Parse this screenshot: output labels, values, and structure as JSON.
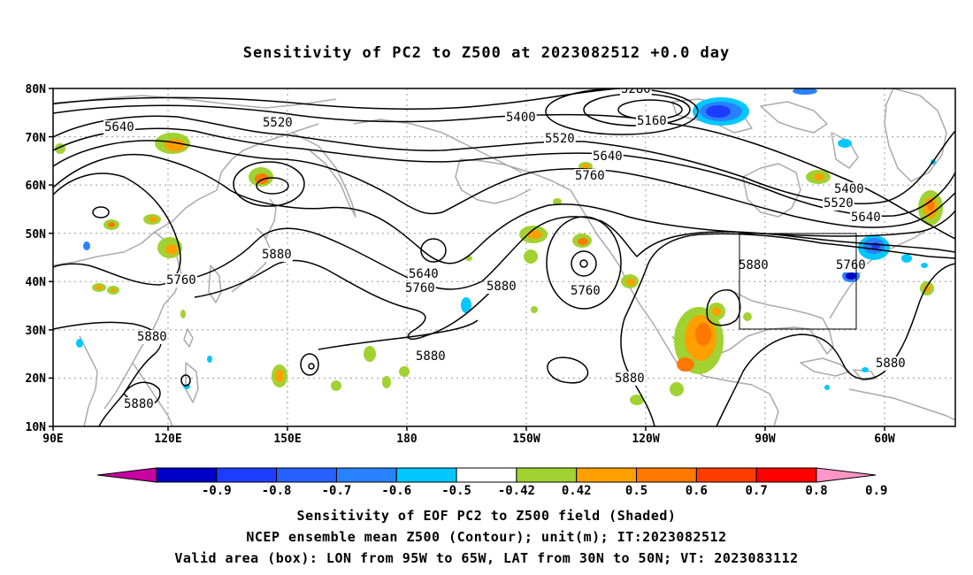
{
  "title": "Sensitivity of PC2 to Z500 at 2023082512 +0.0 day",
  "lat_labels": [
    "80N",
    "70N",
    "60N",
    "50N",
    "40N",
    "30N",
    "20N",
    "10N"
  ],
  "lon_labels": [
    "90E",
    "120E",
    "150E",
    "180",
    "150W",
    "120W",
    "90W",
    "60W"
  ],
  "contour_labels": {
    "c5640a": "5640",
    "c5520a": "5520",
    "c5400": "5400",
    "c5280": "5280",
    "c5160": "5160",
    "c5520b": "5520",
    "c5640b": "5640",
    "c5760a": "5760",
    "c5400b": "5400",
    "c5520c": "5520",
    "c5640c": "5640",
    "c5880a": "5880",
    "c5760b": "5760",
    "c5640d": "5640",
    "c5760c": "5760",
    "c5880b": "5880",
    "c5760d": "5760",
    "c5880c": "5880",
    "c5760e": "5760",
    "c5880d": "5880",
    "c5880e": "5880",
    "c5880f": "5880",
    "c5880g": "5880",
    "c5880h": "5880"
  },
  "colorbar": {
    "labels": [
      "-0.9",
      "-0.8",
      "-0.7",
      "-0.6",
      "-0.5",
      "-0.42",
      "0.42",
      "0.5",
      "0.6",
      "0.7",
      "0.8",
      "0.9"
    ],
    "colors": [
      "#c800a0",
      "#0000c8",
      "#1e3cff",
      "#2860ff",
      "#2882ff",
      "#00c8ff",
      "#ffffff",
      "#a0d232",
      "#ffa000",
      "#ff7800",
      "#ff3c00",
      "#ff0000",
      "#ff96c8"
    ]
  },
  "caption": {
    "line1": "Sensitivity of EOF PC2 to Z500 field (Shaded)",
    "line2": "NCEP ensemble mean Z500 (Contour); unit(m); IT:2023082512",
    "line3": "Valid area (box): LON from 95W to 65W, LAT from 30N to 50N; VT: 2023083112"
  }
}
